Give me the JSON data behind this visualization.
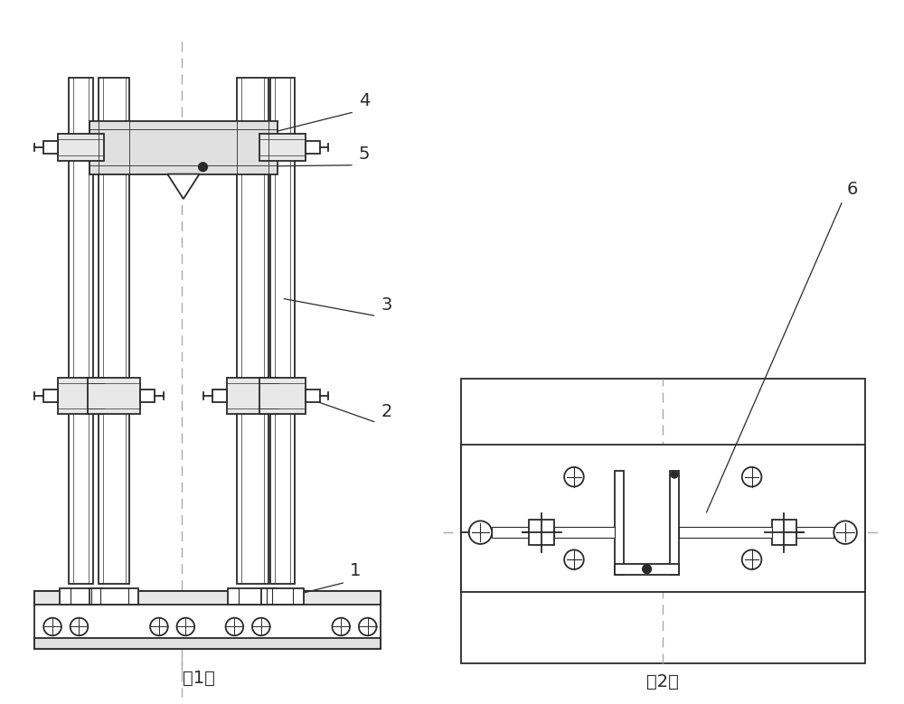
{
  "bg_color": "#ffffff",
  "line_color": "#2a2a2a",
  "dashed_color": "#aaaaaa",
  "label_color": "#2a2a2a",
  "fig_width": 10.0,
  "fig_height": 7.79,
  "caption1": "（1）",
  "caption2": "（2）"
}
